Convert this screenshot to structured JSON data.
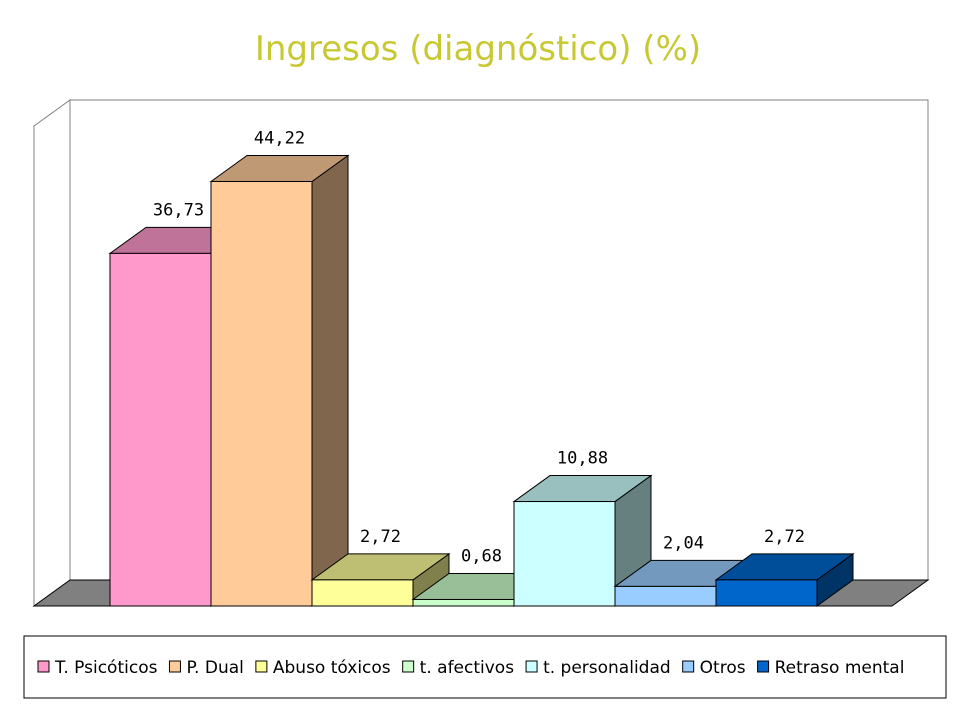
{
  "chart_data": {
    "type": "bar",
    "title": "Ingresos (diagnóstico) (%)",
    "categories": [
      "T. Psicóticos",
      "P. Dual",
      "Abuso tóxicos",
      "t. afectivos",
      "t. personalidad",
      "Otros",
      "Retraso mental"
    ],
    "values": [
      36.73,
      44.22,
      2.72,
      0.68,
      10.88,
      2.04,
      2.72
    ],
    "value_labels": [
      "36,73",
      "44,22",
      "2,72",
      "0,68",
      "10,88",
      "2,04",
      "2,72"
    ],
    "ylim": [
      0,
      50
    ],
    "grid": false,
    "three_d": true,
    "legend_position": "bottom",
    "title_color": "#C8C832",
    "colors": [
      "#FF99CC",
      "#FFCC99",
      "#FFFF99",
      "#CCFFCC",
      "#CCFFFF",
      "#99CCFF",
      "#0066CC"
    ]
  }
}
